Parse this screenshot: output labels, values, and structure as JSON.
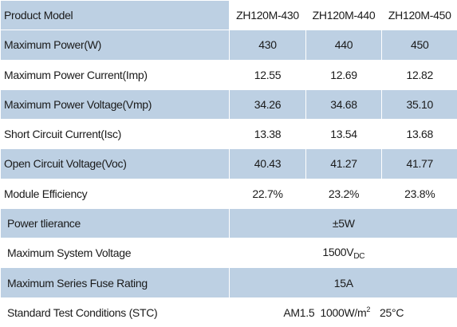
{
  "table": {
    "header": {
      "label": "Product Model",
      "models": [
        "ZH120M-430",
        "ZH120M-440",
        "ZH120M-450"
      ]
    },
    "rows": [
      {
        "label": "Maximum Power(W)",
        "values": [
          "430",
          "440",
          "450"
        ]
      },
      {
        "label": "Maximum Power Current(Imp)",
        "values": [
          "12.55",
          "12.69",
          "12.82"
        ]
      },
      {
        "label": "Maximum Power Voltage(Vmp)",
        "values": [
          "34.26",
          "34.68",
          "35.10"
        ]
      },
      {
        "label": "Short Circuit Current(Isc)",
        "values": [
          "13.38",
          "13.54",
          "13.68"
        ]
      },
      {
        "label": "Open Circuit Voltage(Voc)",
        "values": [
          "40.43",
          "41.27",
          "41.77"
        ]
      },
      {
        "label": "Module Efficiency",
        "values": [
          "22.7%",
          "23.2%",
          "23.8%"
        ]
      }
    ],
    "spanned": {
      "tolerance": {
        "label": "Power tlierance",
        "value": "±5W"
      },
      "system_voltage": {
        "label": "Maximum System Voltage",
        "value": "1500V",
        "value_sub": "DC"
      },
      "fuse": {
        "label": "Maximum Series Fuse Rating",
        "value": "15A"
      },
      "stc": {
        "label": "Standard Test Conditions (STC)",
        "value_a": "AM1.5",
        "value_b": "1000W/m",
        "value_b_sup": "2",
        "value_c": "25°C"
      }
    }
  },
  "colors": {
    "row_shade": "#bdd0e3",
    "row_plain": "#ffffff"
  }
}
